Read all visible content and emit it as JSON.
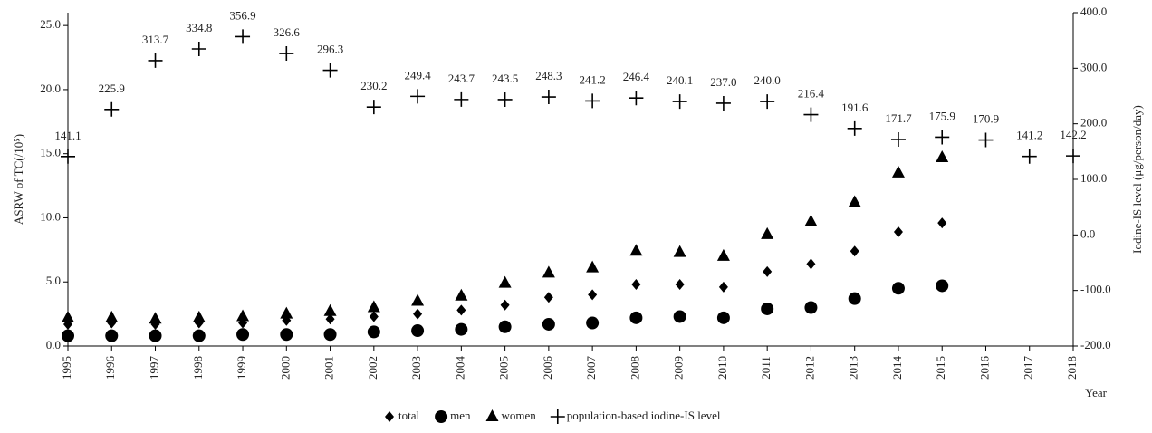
{
  "chart_data": {
    "type": "scatter",
    "y_label": "ASRW of TC(/10⁵)",
    "y2_label": "Iodine-IS level (μg/person/day)",
    "x_label": "Year",
    "categories": [
      "1995",
      "1996",
      "1997",
      "1998",
      "1999",
      "2000",
      "2001",
      "2002",
      "2003",
      "2004",
      "2005",
      "2006",
      "2007",
      "2008",
      "2009",
      "2010",
      "2011",
      "2012",
      "2013",
      "2014",
      "2015",
      "2016",
      "2017",
      "2018"
    ],
    "ylim": [
      0,
      26
    ],
    "yticks": [
      {
        "value": 0,
        "label": "0.0"
      },
      {
        "value": 5,
        "label": "5.0"
      },
      {
        "value": 10,
        "label": "10.0"
      },
      {
        "value": 15,
        "label": "15.0"
      },
      {
        "value": 20,
        "label": "20.0"
      },
      {
        "value": 25,
        "label": "25.0"
      }
    ],
    "y2lim": [
      -200,
      400
    ],
    "y2ticks": [
      {
        "value": -200,
        "label": "-200.0"
      },
      {
        "value": -100,
        "label": "-100.0"
      },
      {
        "value": 0,
        "label": "0.0"
      },
      {
        "value": 100,
        "label": "100.0"
      },
      {
        "value": 200,
        "label": "200.0"
      },
      {
        "value": 300,
        "label": "300.0"
      },
      {
        "value": 400,
        "label": "400.0"
      }
    ],
    "series": [
      {
        "name": "total",
        "color": "#000000",
        "marker": "diamond",
        "values": [
          1.7,
          1.8,
          1.7,
          1.8,
          1.8,
          2.0,
          2.1,
          2.3,
          2.5,
          2.8,
          3.2,
          3.8,
          4.0,
          4.8,
          4.8,
          4.6,
          5.8,
          6.4,
          7.4,
          8.9,
          9.6,
          null,
          null,
          null
        ]
      },
      {
        "name": "men",
        "color": "#000000",
        "marker": "circle",
        "values": [
          0.8,
          0.8,
          0.8,
          0.8,
          0.9,
          0.9,
          0.9,
          1.1,
          1.2,
          1.3,
          1.5,
          1.7,
          1.8,
          2.2,
          2.3,
          2.2,
          2.9,
          3.0,
          3.7,
          4.5,
          4.7,
          null,
          null,
          null
        ]
      },
      {
        "name": "women",
        "color": "#000000",
        "marker": "triangle",
        "values": [
          2.2,
          2.2,
          2.1,
          2.2,
          2.3,
          2.5,
          2.7,
          3.0,
          3.5,
          3.9,
          4.9,
          5.7,
          6.1,
          7.4,
          7.3,
          7.0,
          8.7,
          9.7,
          11.2,
          13.5,
          14.7,
          null,
          null,
          null
        ]
      },
      {
        "name": "population-based iodine-IS level",
        "color": "#000000",
        "marker": "plus",
        "axis": "y2",
        "values": [
          141.1,
          225.9,
          313.7,
          334.8,
          356.9,
          326.6,
          296.3,
          230.2,
          249.4,
          243.7,
          243.5,
          248.3,
          241.2,
          246.4,
          240.1,
          237.0,
          240.0,
          216.4,
          191.6,
          171.7,
          175.9,
          170.9,
          141.2,
          142.2
        ],
        "value_labels": [
          "141.1",
          "225.9",
          "313.7",
          "334.8",
          "356.9",
          "326.6",
          "296.3",
          "230.2",
          "249.4",
          "243.7",
          "243.5",
          "248.3",
          "241.2",
          "246.4",
          "240.1",
          "237.0",
          "240.0",
          "216.4",
          "191.6",
          "171.7",
          "175.9",
          "170.9",
          "141.2",
          "142.2"
        ]
      }
    ]
  }
}
